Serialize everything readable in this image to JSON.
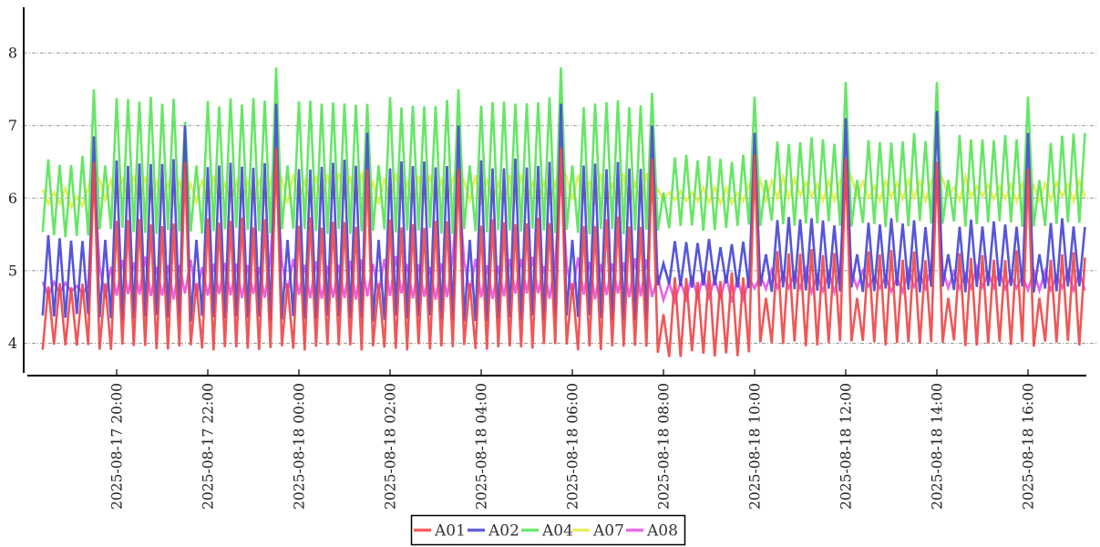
{
  "page": {
    "background": "#ffffff",
    "axis_color": "#000000",
    "grid_color": "#999999",
    "text_color": "#222222"
  },
  "chart_data": {
    "type": "line",
    "title": "",
    "xlabel": "",
    "ylabel": "",
    "y_axis": {
      "ticks": [
        4,
        5,
        6,
        7,
        8
      ],
      "min": 3.55,
      "max": 8.6,
      "grid": true,
      "grid_style": "dashed"
    },
    "x_axis": {
      "unit": "minutes after 2025-08-17 18:00",
      "data_start": 22.5,
      "data_end": 1395,
      "sample_step_minutes": 7.5,
      "oscillation_period_minutes": 15,
      "label_rotation_deg": -90,
      "ticks": [
        {
          "t": 120,
          "label": "2025-08-17 20:00"
        },
        {
          "t": 240,
          "label": "2025-08-17 22:00"
        },
        {
          "t": 360,
          "label": "2025-08-18 00:00"
        },
        {
          "t": 480,
          "label": "2025-08-18 02:00"
        },
        {
          "t": 600,
          "label": "2025-08-18 04:00"
        },
        {
          "t": 720,
          "label": "2025-08-18 06:00"
        },
        {
          "t": 840,
          "label": "2025-08-18 08:00"
        },
        {
          "t": 960,
          "label": "2025-08-18 10:00"
        },
        {
          "t": 1080,
          "label": "2025-08-18 12:00"
        },
        {
          "t": 1200,
          "label": "2025-08-18 14:00"
        },
        {
          "t": 1320,
          "label": "2025-08-18 16:00"
        }
      ]
    },
    "legend": {
      "position": "bottom-center",
      "entries": [
        "A01",
        "A02",
        "A04",
        "A07",
        "A08"
      ]
    },
    "draw_order": [
      "A07",
      "A08",
      "A04",
      "A02",
      "A01"
    ],
    "encoding_note": "Each series zigzags between its envelope low and high every 15 minutes; spikes list [time, peak] overrides at those sample times.",
    "series": [
      {
        "name": "A01",
        "color": "#ee4545",
        "phase": 0,
        "envelope": [
          [
            22.5,
            90,
            3.9,
            4.9
          ],
          [
            90,
            825,
            3.9,
            5.75
          ],
          [
            825,
            960,
            3.8,
            5.0
          ],
          [
            960,
            1396,
            3.95,
            5.3
          ]
        ],
        "spikes": [
          [
            90,
            6.5
          ],
          [
            210,
            6.5
          ],
          [
            330,
            6.7
          ],
          [
            450,
            6.4
          ],
          [
            570,
            6.4
          ],
          [
            705,
            6.7
          ],
          [
            825,
            6.55
          ],
          [
            960,
            6.6
          ],
          [
            1080,
            6.55
          ],
          [
            1200,
            6.5
          ],
          [
            1320,
            6.4
          ]
        ]
      },
      {
        "name": "A02",
        "color": "#4444d6",
        "phase": 0,
        "envelope": [
          [
            22.5,
            90,
            4.35,
            5.5
          ],
          [
            90,
            825,
            4.3,
            6.55
          ],
          [
            825,
            960,
            4.75,
            5.45
          ],
          [
            960,
            1396,
            4.7,
            5.75
          ]
        ],
        "spikes": [
          [
            90,
            6.85
          ],
          [
            210,
            7.0
          ],
          [
            330,
            7.3
          ],
          [
            450,
            6.9
          ],
          [
            570,
            7.0
          ],
          [
            705,
            7.3
          ],
          [
            825,
            7.0
          ],
          [
            960,
            6.9
          ],
          [
            1080,
            7.1
          ],
          [
            1200,
            7.2
          ],
          [
            1320,
            6.9
          ]
        ]
      },
      {
        "name": "A04",
        "color": "#55e455",
        "phase": 0,
        "envelope": [
          [
            22.5,
            90,
            5.45,
            6.6
          ],
          [
            90,
            825,
            5.5,
            7.4
          ],
          [
            825,
            960,
            5.55,
            6.6
          ],
          [
            960,
            1396,
            5.6,
            6.9
          ]
        ],
        "spikes": [
          [
            90,
            7.5
          ],
          [
            210,
            7.05
          ],
          [
            330,
            7.8
          ],
          [
            450,
            7.3
          ],
          [
            570,
            7.5
          ],
          [
            705,
            7.8
          ],
          [
            825,
            7.45
          ],
          [
            960,
            7.4
          ],
          [
            1080,
            7.6
          ],
          [
            1200,
            7.6
          ],
          [
            1320,
            7.4
          ]
        ]
      },
      {
        "name": "A07",
        "color": "#e9e94f",
        "phase": 7.5,
        "envelope": [
          [
            22.5,
            90,
            5.85,
            6.15
          ],
          [
            90,
            825,
            5.9,
            6.35
          ],
          [
            825,
            960,
            5.9,
            6.2
          ],
          [
            960,
            1396,
            5.95,
            6.3
          ]
        ],
        "spikes": [
          [
            90,
            6.4
          ],
          [
            330,
            6.45
          ],
          [
            570,
            6.4
          ],
          [
            705,
            6.45
          ],
          [
            1080,
            6.4
          ],
          [
            1200,
            6.4
          ]
        ]
      },
      {
        "name": "A08",
        "color": "#e551e5",
        "phase": 7.5,
        "envelope": [
          [
            22.5,
            90,
            4.65,
            4.85
          ],
          [
            90,
            825,
            4.6,
            5.2
          ],
          [
            825,
            960,
            4.55,
            4.95
          ],
          [
            960,
            1396,
            4.7,
            5.05
          ]
        ],
        "spikes": [
          [
            90,
            6.3
          ],
          [
            330,
            6.35
          ],
          [
            570,
            6.2
          ],
          [
            705,
            6.35
          ],
          [
            1080,
            6.3
          ],
          [
            1200,
            6.3
          ]
        ]
      }
    ]
  }
}
